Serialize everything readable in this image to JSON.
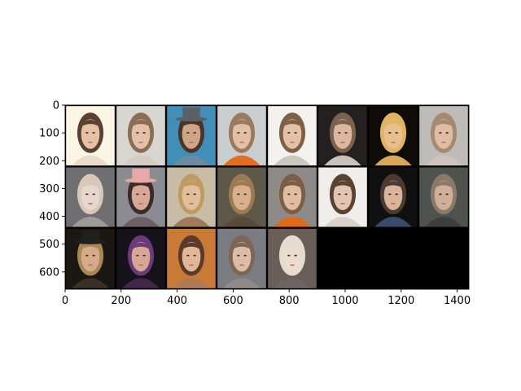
{
  "chart_data": {
    "type": "image-grid",
    "title": "",
    "xlabel": "",
    "ylabel": "",
    "xlim": [
      0,
      1442
    ],
    "ylim": [
      662,
      0
    ],
    "x_ticks": [
      0,
      200,
      400,
      600,
      800,
      1000,
      1200,
      1400
    ],
    "y_ticks": [
      0,
      100,
      200,
      300,
      400,
      500,
      600
    ],
    "grid": false,
    "grid_layout": {
      "columns": 8,
      "rows": 3,
      "filled_tiles": 21
    },
    "tiles": [
      {
        "row": 0,
        "col": 0,
        "bg": "#fbf5e3",
        "face": "#e6c1a6",
        "hair": "#5a4030",
        "shirt": "#e9dcc9"
      },
      {
        "row": 0,
        "col": 1,
        "bg": "#d8d6d0",
        "face": "#e4c0a8",
        "hair": "#8a6d55",
        "shirt": "#d3ccc4"
      },
      {
        "row": 0,
        "col": 2,
        "bg": "#3f8fb8",
        "face": "#cfa489",
        "hair": "#4a3428",
        "shirt": "#6c8aa0",
        "hat": "#5b6068"
      },
      {
        "row": 0,
        "col": 3,
        "bg": "#c9cfd0",
        "face": "#e3c0a5",
        "hair": "#9a7a5e",
        "shirt": "#e07020"
      },
      {
        "row": 0,
        "col": 4,
        "bg": "#f3f2ee",
        "face": "#e4c2a8",
        "hair": "#7d6048",
        "shirt": "#cbc7c0"
      },
      {
        "row": 0,
        "col": 5,
        "bg": "#23201f",
        "face": "#dbb7a0",
        "hair": "#7b624f",
        "shirt": "#c9c2bb"
      },
      {
        "row": 0,
        "col": 6,
        "bg": "#0f0b08",
        "face": "#e8c08e",
        "hair": "#e0b460",
        "shirt": "#d9a65a"
      },
      {
        "row": 0,
        "col": 7,
        "bg": "#bdbcb8",
        "face": "#e0bca2",
        "hair": "#a58a70",
        "shirt": "#cdc5bd"
      },
      {
        "row": 1,
        "col": 0,
        "bg": "#6f6e70",
        "face": "#e7d6cc",
        "hair": "#d8c8b8",
        "shirt": "#a09a94"
      },
      {
        "row": 1,
        "col": 1,
        "bg": "#8a8c92",
        "face": "#d6a898",
        "hair": "#3a2a28",
        "shirt": "#6f6066",
        "hat": "#e8a8a8"
      },
      {
        "row": 1,
        "col": 2,
        "bg": "#c7bda6",
        "face": "#e0bf9c",
        "hair": "#c09a60",
        "shirt": "#a07a5a"
      },
      {
        "row": 1,
        "col": 3,
        "bg": "#5e5848",
        "face": "#d9b08e",
        "hair": "#9c7b52",
        "shirt": "#5a4a3a"
      },
      {
        "row": 1,
        "col": 4,
        "bg": "#8d8a88",
        "face": "#e0bca0",
        "hair": "#7a5e46",
        "shirt": "#e06a18"
      },
      {
        "row": 1,
        "col": 5,
        "bg": "#efeeea",
        "face": "#e3c4b0",
        "hair": "#5a4232",
        "shirt": "#d8d2cc"
      },
      {
        "row": 1,
        "col": 6,
        "bg": "#101010",
        "face": "#d7b49a",
        "hair": "#4a3a30",
        "shirt": "#3a4a6a"
      },
      {
        "row": 1,
        "col": 7,
        "bg": "#4f5350",
        "face": "#d0b09a",
        "hair": "#8a7a66",
        "shirt": "#3d3e3e"
      },
      {
        "row": 2,
        "col": 0,
        "bg": "#1b1712",
        "face": "#d5ab8a",
        "hair": "#a88850",
        "shirt": "#3a3026",
        "hat": "#202020"
      },
      {
        "row": 2,
        "col": 1,
        "bg": "#15121a",
        "face": "#d6a894",
        "hair": "#6a3a7a",
        "shirt": "#402848"
      },
      {
        "row": 2,
        "col": 2,
        "bg": "#c87a36",
        "face": "#e0b898",
        "hair": "#5a3a28",
        "shirt": "#b07a52"
      },
      {
        "row": 2,
        "col": 3,
        "bg": "#7a7c82",
        "face": "#dcbca8",
        "hair": "#7d6654",
        "shirt": "#8f8a88"
      },
      {
        "row": 2,
        "col": 4,
        "bg": "#6a5e58",
        "face": "#ecdcd0",
        "hair": "#e4dccf",
        "shirt": "#6b6460"
      }
    ],
    "empty_fill": "#000000"
  }
}
